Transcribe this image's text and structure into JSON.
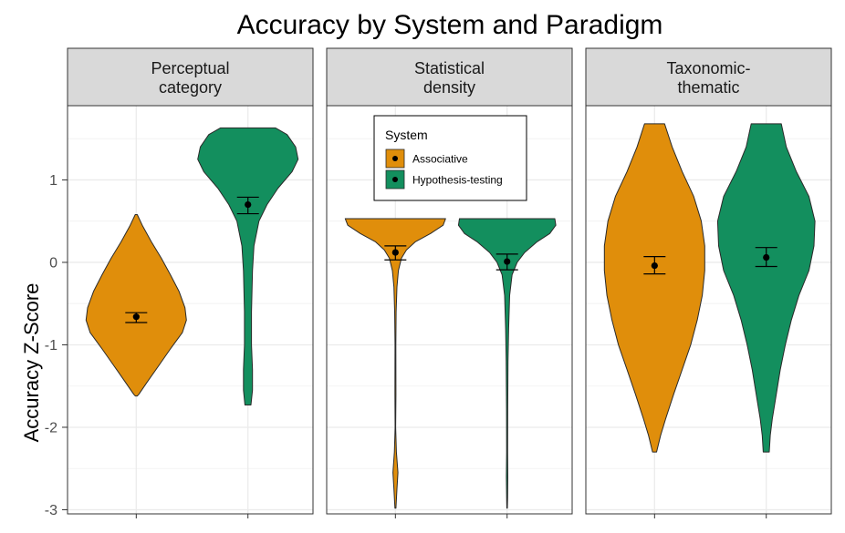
{
  "chart_data": {
    "type": "violin",
    "title": "Accuracy by System and Paradigm",
    "ylabel": "Accuracy Z-Score",
    "xlabel": "",
    "ylim": [
      -3.05,
      1.9
    ],
    "yticks": [
      1,
      0,
      -1,
      -2,
      -3
    ],
    "ytick_labels": [
      "1",
      "0",
      "-1",
      "-2",
      "-3"
    ],
    "grid": true,
    "legend": {
      "title": "System",
      "placement": "inside-top-center-panel",
      "entries": [
        {
          "label": "Associative",
          "color": "#E08E0B"
        },
        {
          "label": "Hypothesis-testing",
          "color": "#138F5E"
        }
      ]
    },
    "panels": [
      {
        "label": "Perceptual\ncategory",
        "violins": [
          {
            "system": "Associative",
            "mean": -0.66,
            "ci": [
              -0.73,
              -0.61
            ],
            "profile": [
              [
                0.58,
                0.02
              ],
              [
                0.45,
                0.12
              ],
              [
                0.25,
                0.3
              ],
              [
                0.05,
                0.5
              ],
              [
                -0.15,
                0.68
              ],
              [
                -0.35,
                0.85
              ],
              [
                -0.55,
                0.97
              ],
              [
                -0.7,
                1.0
              ],
              [
                -0.85,
                0.92
              ],
              [
                -1.05,
                0.68
              ],
              [
                -1.25,
                0.45
              ],
              [
                -1.45,
                0.22
              ],
              [
                -1.6,
                0.05
              ],
              [
                -1.62,
                0.02
              ]
            ]
          },
          {
            "system": "Hypothesis-testing",
            "mean": 0.7,
            "ci": [
              0.59,
              0.79
            ],
            "profile": [
              [
                1.63,
                0.55
              ],
              [
                1.55,
                0.78
              ],
              [
                1.4,
                0.95
              ],
              [
                1.25,
                1.0
              ],
              [
                1.1,
                0.88
              ],
              [
                0.9,
                0.6
              ],
              [
                0.7,
                0.38
              ],
              [
                0.5,
                0.22
              ],
              [
                0.2,
                0.12
              ],
              [
                -0.1,
                0.09
              ],
              [
                -0.6,
                0.07
              ],
              [
                -1.0,
                0.07
              ],
              [
                -1.3,
                0.09
              ],
              [
                -1.55,
                0.09
              ],
              [
                -1.73,
                0.06
              ]
            ]
          }
        ]
      },
      {
        "label": "Statistical\ndensity",
        "violins": [
          {
            "system": "Associative",
            "mean": 0.12,
            "ci": [
              0.03,
              0.2
            ],
            "profile": [
              [
                0.53,
                1.0
              ],
              [
                0.45,
                0.95
              ],
              [
                0.35,
                0.7
              ],
              [
                0.25,
                0.4
              ],
              [
                0.15,
                0.22
              ],
              [
                0.05,
                0.12
              ],
              [
                -0.1,
                0.06
              ],
              [
                -0.3,
                0.03
              ],
              [
                -0.6,
                0.015
              ],
              [
                -1.0,
                0.008
              ],
              [
                -1.6,
                0.01
              ],
              [
                -2.0,
                0.006
              ],
              [
                -2.3,
                0.02
              ],
              [
                -2.55,
                0.05
              ],
              [
                -2.75,
                0.03
              ],
              [
                -2.98,
                0.01
              ]
            ]
          },
          {
            "system": "Hypothesis-testing",
            "mean": 0.01,
            "ci": [
              -0.09,
              0.1
            ],
            "profile": [
              [
                0.53,
                0.95
              ],
              [
                0.45,
                0.97
              ],
              [
                0.35,
                0.85
              ],
              [
                0.25,
                0.6
              ],
              [
                0.12,
                0.35
              ],
              [
                0.0,
                0.2
              ],
              [
                -0.15,
                0.1
              ],
              [
                -0.4,
                0.05
              ],
              [
                -0.8,
                0.03
              ],
              [
                -1.2,
                0.018
              ],
              [
                -1.8,
                0.012
              ],
              [
                -2.3,
                0.01
              ],
              [
                -2.6,
                0.015
              ],
              [
                -2.85,
                0.01
              ],
              [
                -2.98,
                0.006
              ]
            ]
          }
        ]
      },
      {
        "label": "Taxonomic-\nthematic",
        "violins": [
          {
            "system": "Associative",
            "mean": -0.04,
            "ci": [
              -0.14,
              0.07
            ],
            "profile": [
              [
                1.68,
                0.2
              ],
              [
                1.4,
                0.35
              ],
              [
                1.1,
                0.55
              ],
              [
                0.8,
                0.78
              ],
              [
                0.5,
                0.93
              ],
              [
                0.2,
                1.0
              ],
              [
                -0.1,
                1.0
              ],
              [
                -0.4,
                0.95
              ],
              [
                -0.7,
                0.85
              ],
              [
                -1.0,
                0.72
              ],
              [
                -1.3,
                0.55
              ],
              [
                -1.6,
                0.38
              ],
              [
                -1.9,
                0.22
              ],
              [
                -2.1,
                0.12
              ],
              [
                -2.25,
                0.06
              ],
              [
                -2.3,
                0.04
              ]
            ]
          },
          {
            "system": "Hypothesis-testing",
            "mean": 0.06,
            "ci": [
              -0.05,
              0.18
            ],
            "profile": [
              [
                1.68,
                0.3
              ],
              [
                1.4,
                0.4
              ],
              [
                1.1,
                0.6
              ],
              [
                0.8,
                0.85
              ],
              [
                0.5,
                0.97
              ],
              [
                0.2,
                0.95
              ],
              [
                -0.1,
                0.85
              ],
              [
                -0.4,
                0.65
              ],
              [
                -0.7,
                0.5
              ],
              [
                -1.0,
                0.38
              ],
              [
                -1.3,
                0.28
              ],
              [
                -1.6,
                0.2
              ],
              [
                -1.9,
                0.12
              ],
              [
                -2.1,
                0.08
              ],
              [
                -2.3,
                0.06
              ]
            ]
          }
        ]
      }
    ]
  }
}
